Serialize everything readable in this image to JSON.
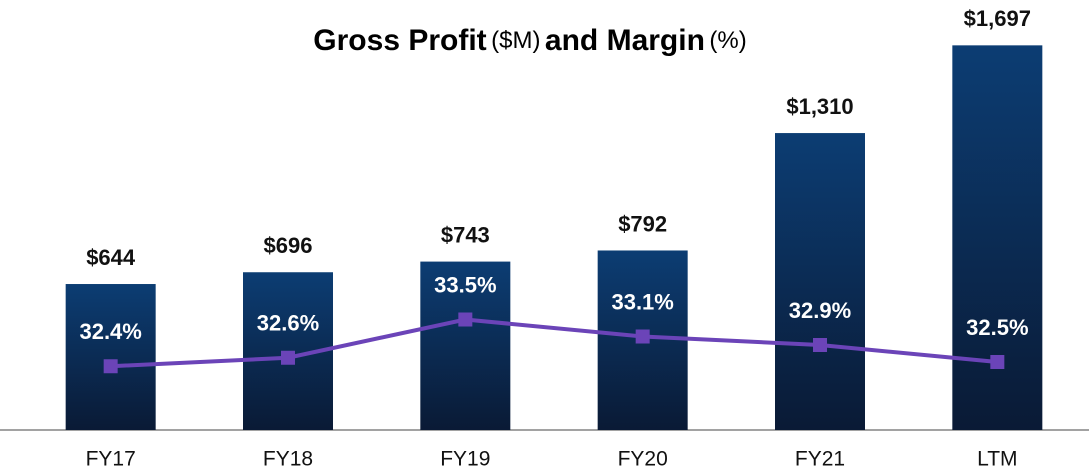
{
  "chart_data": {
    "type": "bar_line",
    "title": [
      "Gross Profit",
      "($M)",
      "and Margin",
      "(%)"
    ],
    "categories": [
      "FY17",
      "FY18",
      "FY19",
      "FY20",
      "FY21",
      "LTM"
    ],
    "series": [
      {
        "name": "Gross Profit",
        "type": "bar",
        "color": "#0b3a6e",
        "values": [
          644,
          696,
          743,
          792,
          1310,
          1697
        ],
        "value_labels": [
          "$644",
          "$696",
          "$743",
          "$792",
          "$1,310",
          "$1,697"
        ]
      },
      {
        "name": "Margin",
        "type": "line",
        "axis": "y2",
        "color": "#6b44b8",
        "values": [
          32.4,
          32.6,
          33.5,
          33.1,
          32.9,
          32.5
        ],
        "value_labels": [
          "32.4%",
          "32.6%",
          "33.5%",
          "33.1%",
          "32.9%",
          "32.5%"
        ]
      }
    ],
    "ylim": [
      0,
      1800
    ],
    "y2lim": [
      30.9,
      40.5
    ]
  }
}
